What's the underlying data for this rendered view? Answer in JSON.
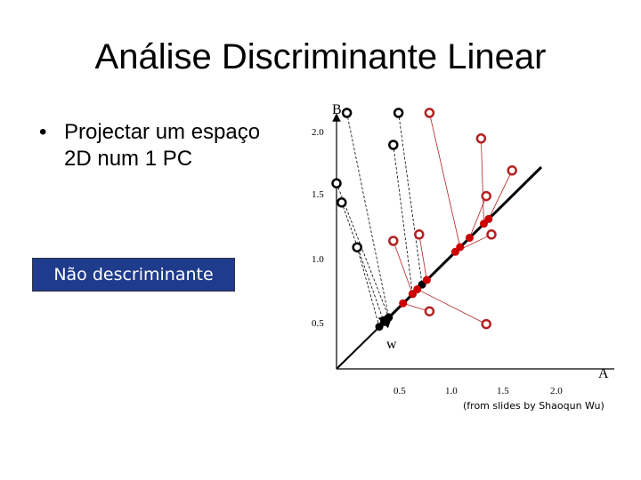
{
  "title": "Análise Discriminante Linear",
  "bullet": {
    "marker": "•",
    "text_line1": "Projectar um espaço",
    "text_line2": "2D num  1 PC"
  },
  "badge": "Não descriminante",
  "credit": "(from slides by Shaoqun Wu)",
  "diagram": {
    "axis_y_label": "B",
    "axis_x_label": "A",
    "w_label": "w",
    "y_ticks": [
      "2.0",
      "1.5",
      "1.0",
      "0.5"
    ],
    "x_ticks": [
      "0.5",
      "1.0",
      "1.5",
      "2.0"
    ],
    "colors": {
      "black": "#000000",
      "red": "#cc0000",
      "red_outline": "#b22222",
      "badge_bg": "#1f3b8c"
    },
    "black_points": [
      {
        "x": 0.1,
        "y": 2.0,
        "proj_t": 0.55
      },
      {
        "x": 0.6,
        "y": 2.0,
        "proj_t": 0.9
      },
      {
        "x": 0.55,
        "y": 1.75,
        "proj_t": 0.8
      },
      {
        "x": 0.0,
        "y": 1.45,
        "proj_t": 0.55
      },
      {
        "x": 0.05,
        "y": 1.3,
        "proj_t": 0.5
      },
      {
        "x": 0.2,
        "y": 0.95,
        "proj_t": 0.45
      }
    ],
    "red_points": [
      {
        "x": 0.9,
        "y": 2.0,
        "proj_t": 1.3
      },
      {
        "x": 1.4,
        "y": 1.8,
        "proj_t": 1.55
      },
      {
        "x": 1.7,
        "y": 1.55,
        "proj_t": 1.6
      },
      {
        "x": 1.45,
        "y": 1.35,
        "proj_t": 1.4
      },
      {
        "x": 1.5,
        "y": 1.05,
        "proj_t": 1.25
      },
      {
        "x": 0.8,
        "y": 1.05,
        "proj_t": 0.95
      },
      {
        "x": 0.55,
        "y": 1.0,
        "proj_t": 0.8
      },
      {
        "x": 0.9,
        "y": 0.45,
        "proj_t": 0.7
      },
      {
        "x": 1.45,
        "y": 0.35,
        "proj_t": 0.85
      }
    ]
  }
}
